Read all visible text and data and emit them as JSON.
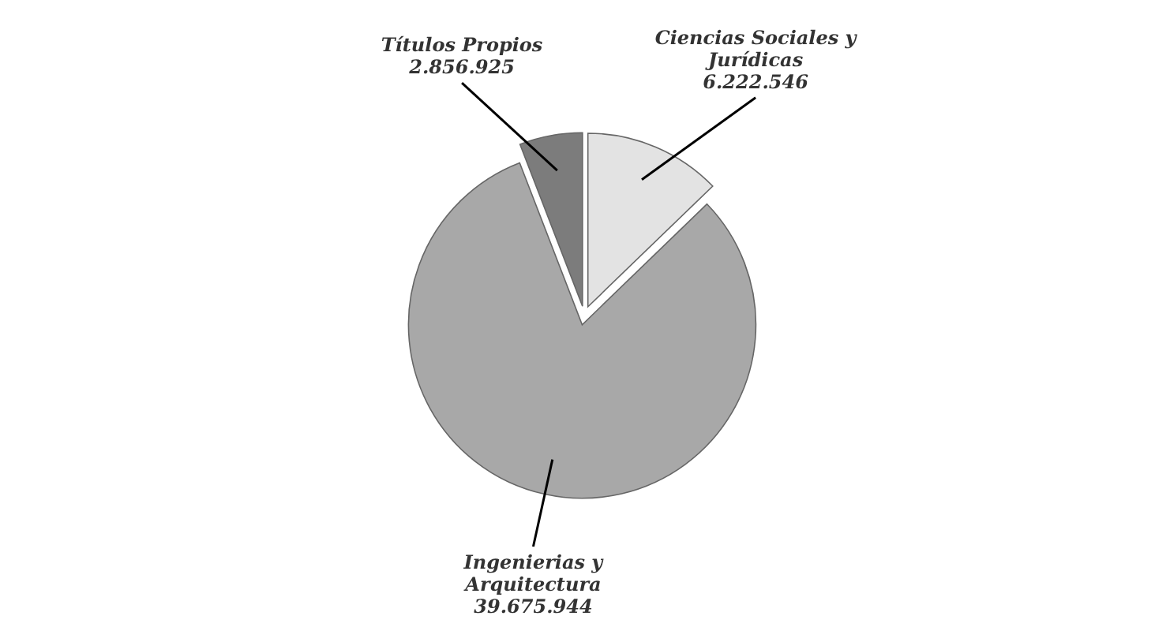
{
  "chart_data": {
    "type": "pie",
    "categories": [
      "Ciencias Sociales y Jurídicas",
      "Ingenierias y Arquitectura",
      "Títulos Propios"
    ],
    "values": [
      6222546,
      39675944,
      2856925
    ],
    "value_labels": [
      "6.222.546",
      "39.675.944",
      "2.856.925"
    ],
    "colors": [
      "#e3e3e3",
      "#a8a8a8",
      "#7c7c7c"
    ]
  }
}
